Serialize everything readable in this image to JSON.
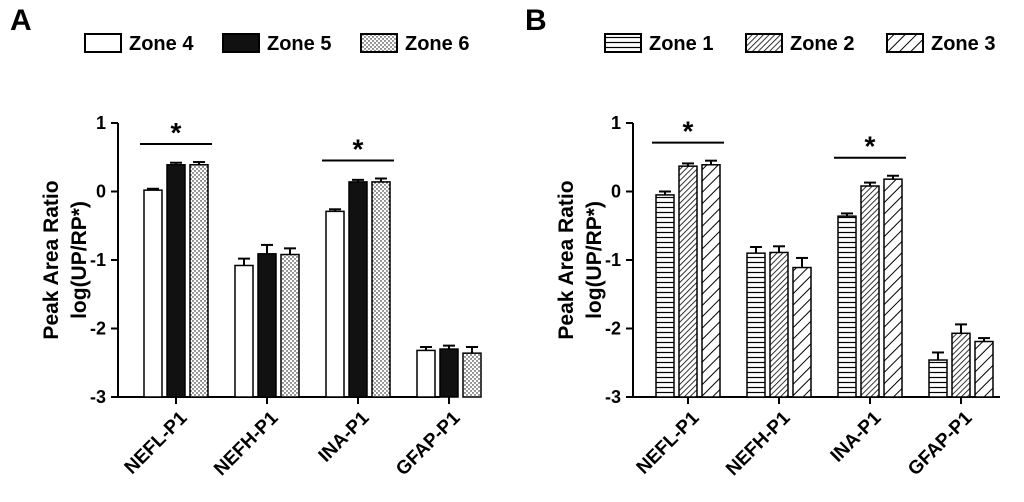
{
  "chart_data": [
    {
      "type": "bar",
      "panel_label": "A",
      "categories": [
        "NEFL-P1",
        "NEFH-P1",
        "INA-P1",
        "GFAP-P1"
      ],
      "ylabel": [
        "Peak Area Ratio",
        "log(UP/RP*)"
      ],
      "ylim": [
        -3,
        1
      ],
      "yticks": [
        "1",
        "0",
        "-1",
        "-2",
        "-3"
      ],
      "legend_position": "top",
      "series": [
        {
          "name": "Zone 4",
          "pattern": "white",
          "values": [
            0.02,
            -1.08,
            -0.29,
            -2.32
          ],
          "errors": [
            0.02,
            0.1,
            0.03,
            0.05
          ]
        },
        {
          "name": "Zone 5",
          "pattern": "black",
          "values": [
            0.39,
            -0.91,
            0.14,
            -2.3
          ],
          "errors": [
            0.03,
            0.13,
            0.03,
            0.05
          ]
        },
        {
          "name": "Zone 6",
          "pattern": "dots",
          "values": [
            0.39,
            -0.92,
            0.14,
            -2.36
          ],
          "errors": [
            0.04,
            0.09,
            0.05,
            0.09
          ]
        }
      ],
      "significance": [
        {
          "category": "NEFL-P1",
          "label": "*"
        },
        {
          "category": "INA-P1",
          "label": "*"
        }
      ]
    },
    {
      "type": "bar",
      "panel_label": "B",
      "categories": [
        "NEFL-P1",
        "NEFH-P1",
        "INA-P1",
        "GFAP-P1"
      ],
      "ylabel": [
        "Peak Area Ratio",
        "log(UP/RP*)"
      ],
      "ylim": [
        -3,
        1
      ],
      "yticks": [
        "1",
        "0",
        "-1",
        "-2",
        "-3"
      ],
      "legend_position": "top",
      "series": [
        {
          "name": "Zone 1",
          "pattern": "hlines",
          "values": [
            -0.05,
            -0.9,
            -0.36,
            -2.46
          ],
          "errors": [
            0.05,
            0.09,
            0.04,
            0.11
          ]
        },
        {
          "name": "Zone 2",
          "pattern": "dense-diag",
          "values": [
            0.37,
            -0.89,
            0.08,
            -2.07
          ],
          "errors": [
            0.04,
            0.09,
            0.05,
            0.13
          ]
        },
        {
          "name": "Zone 3",
          "pattern": "wide-diag",
          "values": [
            0.39,
            -1.11,
            0.18,
            -2.19
          ],
          "errors": [
            0.06,
            0.14,
            0.05,
            0.05
          ]
        }
      ],
      "significance": [
        {
          "category": "NEFL-P1",
          "label": "*"
        },
        {
          "category": "INA-P1",
          "label": "*"
        }
      ]
    }
  ]
}
